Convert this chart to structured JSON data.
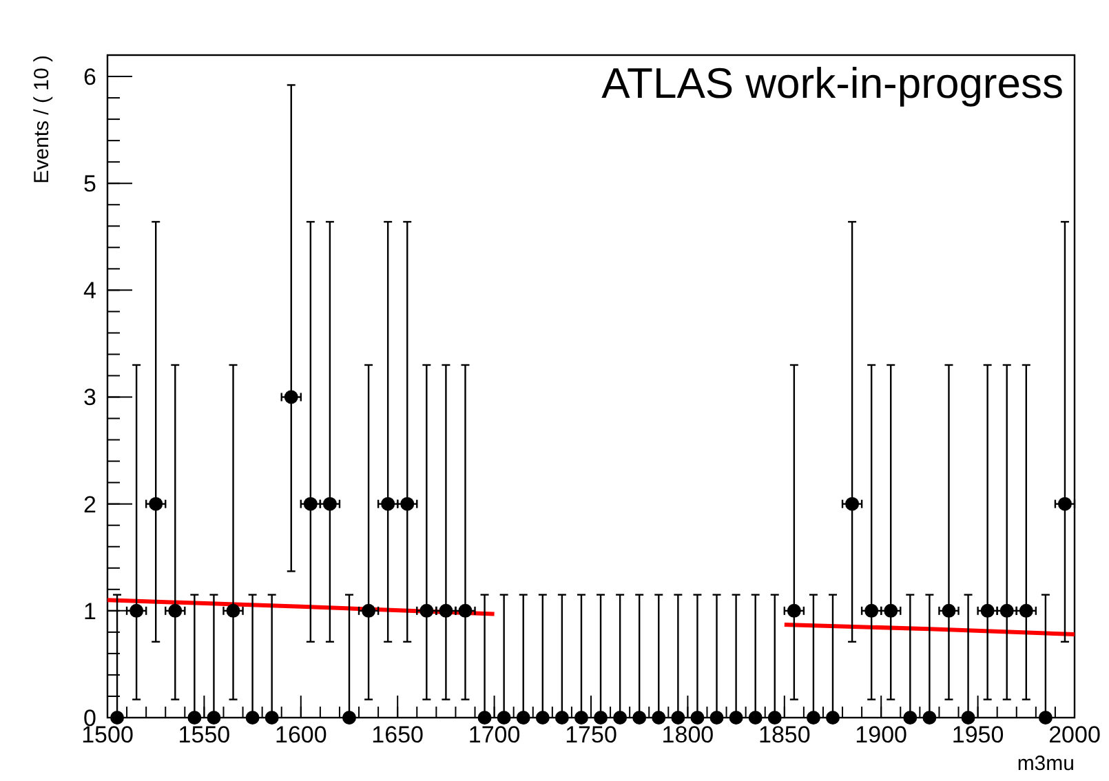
{
  "chart_data": {
    "type": "scatter",
    "xlabel": "m3mu",
    "ylabel": "Events / ( 10 )",
    "annotations": [
      "ATLAS work-in-progress"
    ],
    "xlim": [
      1500,
      2000
    ],
    "xticks": [
      1500,
      1550,
      1600,
      1650,
      1700,
      1750,
      1800,
      1850,
      1900,
      1950,
      2000
    ],
    "ylim": [
      0,
      6.2
    ],
    "yticks": [
      0,
      1,
      2,
      3,
      4,
      5,
      6
    ],
    "grid": false,
    "marker": "circle",
    "series": [
      {
        "color": "#000000",
        "x": [
          1505,
          1515,
          1525,
          1535,
          1545,
          1555,
          1565,
          1575,
          1585,
          1595,
          1605,
          1615,
          1625,
          1635,
          1645,
          1655,
          1665,
          1675,
          1685,
          1695,
          1705,
          1715,
          1725,
          1735,
          1745,
          1755,
          1765,
          1775,
          1785,
          1795,
          1805,
          1815,
          1825,
          1835,
          1845,
          1855,
          1865,
          1875,
          1885,
          1895,
          1905,
          1915,
          1925,
          1935,
          1945,
          1955,
          1965,
          1975,
          1985,
          1995
        ],
        "values": [
          0,
          1,
          2,
          1,
          0,
          0,
          1,
          0,
          0,
          3,
          2,
          2,
          0,
          1,
          2,
          2,
          1,
          1,
          1,
          0,
          0,
          0,
          0,
          0,
          0,
          0,
          0,
          0,
          0,
          0,
          0,
          0,
          0,
          0,
          0,
          1,
          0,
          0,
          2,
          1,
          1,
          0,
          0,
          1,
          0,
          1,
          1,
          1,
          0,
          2
        ],
        "errors": [
          [
            0,
            1.15
          ],
          [
            0.17,
            3.3
          ],
          [
            0.71,
            4.64
          ],
          [
            0.17,
            3.3
          ],
          [
            0,
            1.15
          ],
          [
            0,
            1.15
          ],
          [
            0.17,
            3.3
          ],
          [
            0,
            1.15
          ],
          [
            0,
            1.15
          ],
          [
            1.37,
            5.92
          ],
          [
            0.71,
            4.64
          ],
          [
            0.71,
            4.64
          ],
          [
            0,
            1.15
          ],
          [
            0.17,
            3.3
          ],
          [
            0.71,
            4.64
          ],
          [
            0.71,
            4.64
          ],
          [
            0.17,
            3.3
          ],
          [
            0.17,
            3.3
          ],
          [
            0.17,
            3.3
          ],
          [
            0,
            1.15
          ],
          [
            0,
            1.15
          ],
          [
            0,
            1.15
          ],
          [
            0,
            1.15
          ],
          [
            0,
            1.15
          ],
          [
            0,
            1.15
          ],
          [
            0,
            1.15
          ],
          [
            0,
            1.15
          ],
          [
            0,
            1.15
          ],
          [
            0,
            1.15
          ],
          [
            0,
            1.15
          ],
          [
            0,
            1.15
          ],
          [
            0,
            1.15
          ],
          [
            0,
            1.15
          ],
          [
            0,
            1.15
          ],
          [
            0,
            1.15
          ],
          [
            0.17,
            3.3
          ],
          [
            0,
            1.15
          ],
          [
            0,
            1.15
          ],
          [
            0.71,
            4.64
          ],
          [
            0.17,
            3.3
          ],
          [
            0.17,
            3.3
          ],
          [
            0,
            1.15
          ],
          [
            0,
            1.15
          ],
          [
            0.17,
            3.3
          ],
          [
            0,
            1.15
          ],
          [
            0.17,
            3.3
          ],
          [
            0.17,
            3.3
          ],
          [
            0.17,
            3.3
          ],
          [
            0,
            1.15
          ],
          [
            0.71,
            4.64
          ]
        ],
        "xerrors": [
          null,
          5,
          5,
          5,
          null,
          null,
          5,
          null,
          null,
          5,
          5,
          5,
          null,
          5,
          5,
          5,
          5,
          5,
          5,
          null,
          null,
          null,
          null,
          null,
          null,
          null,
          null,
          null,
          null,
          null,
          null,
          null,
          null,
          null,
          null,
          5,
          null,
          null,
          5,
          5,
          5,
          null,
          null,
          5,
          null,
          5,
          5,
          5,
          null,
          5
        ]
      },
      {
        "type": "line",
        "color": "#ff0000",
        "x": [
          1500,
          1600,
          1700
        ],
        "values": [
          1.1,
          1.04,
          0.97
        ],
        "marker": "none"
      },
      {
        "type": "line",
        "color": "#ff0000",
        "x": [
          1850,
          1925,
          2000
        ],
        "values": [
          0.87,
          0.83,
          0.78
        ],
        "marker": "none"
      }
    ]
  }
}
